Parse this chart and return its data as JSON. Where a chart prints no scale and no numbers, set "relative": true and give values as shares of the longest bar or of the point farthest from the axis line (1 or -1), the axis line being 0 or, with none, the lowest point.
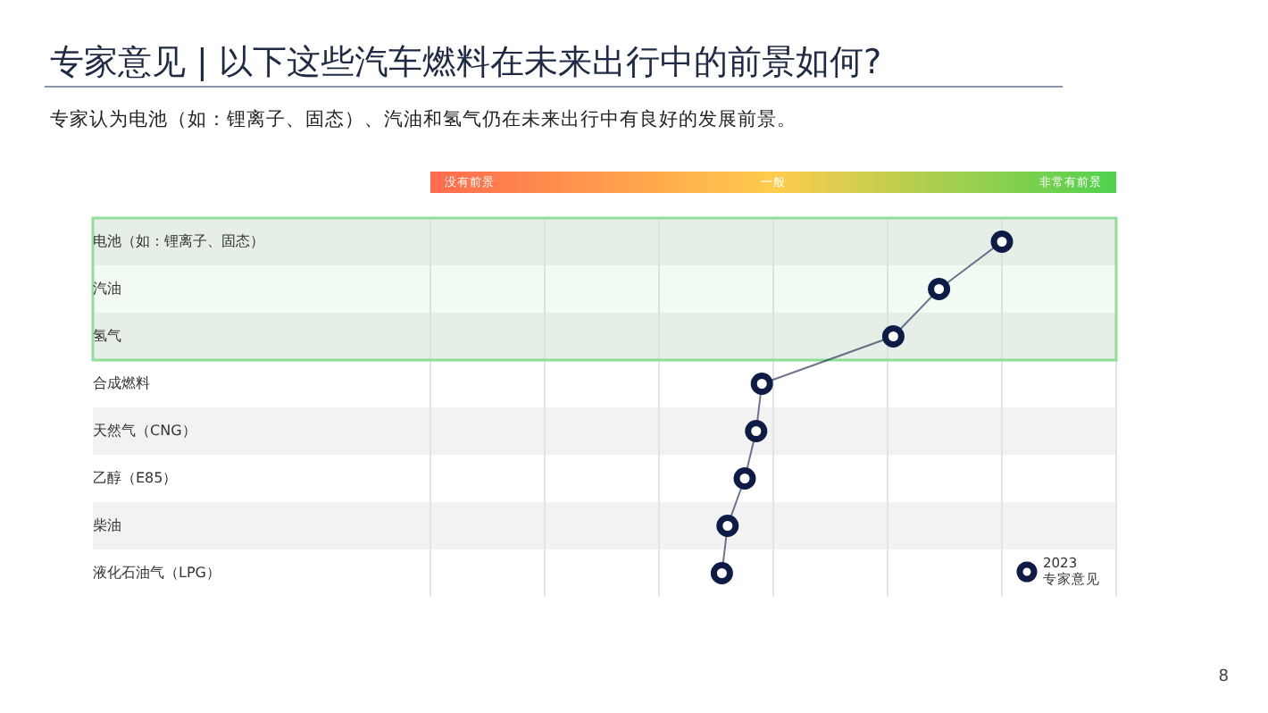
{
  "chart_data": {
    "type": "line",
    "orientation": "horizontal",
    "relative": true,
    "title": "专家意见 | 以下这些汽车燃料在未来出行中的前景如何?",
    "subtitle": "专家认为电池（如：锂离子、固态）、汽油和氢气仍在未来出行中有良好的发展前景。",
    "categories": [
      "电池（如：锂离子、固态）",
      "汽油",
      "氢气",
      "合成燃料",
      "天然气（CNG）",
      "乙醇（E85）",
      "柴油",
      "液化石油气（LPG）"
    ],
    "series": [
      {
        "name": "2023 专家意见",
        "color": "#0d1b45",
        "values": [
          1,
          0.89,
          0.81,
          0.58,
          0.57,
          0.55,
          0.52,
          0.51
        ]
      }
    ],
    "bands": [
      {
        "axis": "y",
        "from": "电池（如：锂离子、固态）",
        "to": "氢气",
        "color": "#8fdf9a"
      }
    ],
    "grid": "x",
    "marker": "circle",
    "legend": "bottom right",
    "annotations": [
      "没有前景",
      "一般",
      "非常有前景",
      "8"
    ]
  }
}
